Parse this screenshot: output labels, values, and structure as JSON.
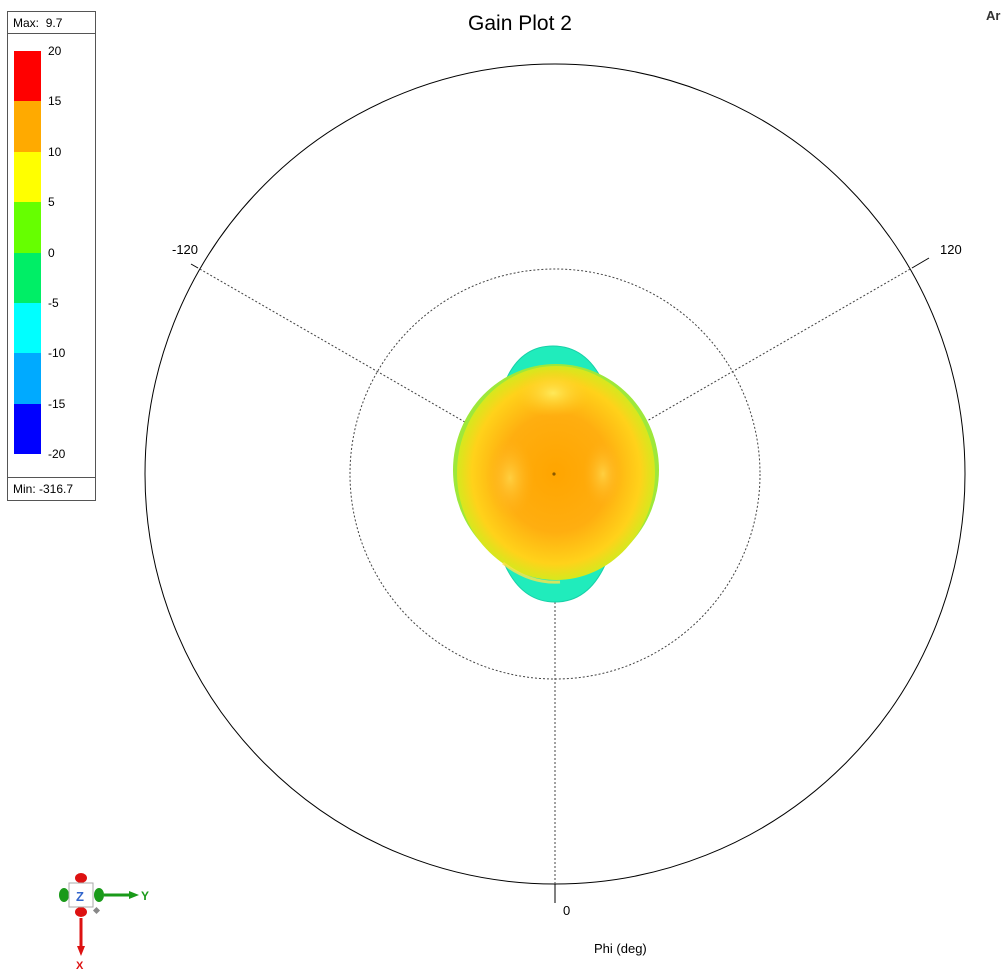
{
  "chart_data": {
    "type": "polar",
    "title": "Gain Plot 2",
    "xlabel": "Phi (deg)",
    "angle_tick_labels": [
      "-120",
      "120",
      "0"
    ],
    "angle_ticks_deg": [
      -120,
      120,
      0
    ],
    "grid_rings": 2,
    "legend": {
      "max_label": "Max:",
      "max_value": "9.7",
      "min_label": "Min:",
      "min_value": "-316.7",
      "ticks": [
        "20",
        "15",
        "10",
        "5",
        "0",
        "-5",
        "-10",
        "-15",
        "-20"
      ],
      "bands": [
        {
          "from": 15,
          "to": 20,
          "color": "#ff0000"
        },
        {
          "from": 10,
          "to": 15,
          "color": "#ffaa00"
        },
        {
          "from": 5,
          "to": 10,
          "color": "#ffff00"
        },
        {
          "from": 0,
          "to": 5,
          "color": "#66ff00"
        },
        {
          "from": -5,
          "to": 0,
          "color": "#00ee66"
        },
        {
          "from": -10,
          "to": -5,
          "color": "#00ffff"
        },
        {
          "from": -15,
          "to": -10,
          "color": "#00aaff"
        },
        {
          "from": -20,
          "to": -15,
          "color": "#0000ff"
        }
      ]
    }
  },
  "corner_label": "Ar",
  "axis_triad": {
    "z": "Z",
    "y": "Y",
    "x": "X"
  },
  "colors": {
    "z_axis": "#3366cc",
    "y_axis": "#1a9a1a",
    "x_axis": "#dd1111"
  }
}
